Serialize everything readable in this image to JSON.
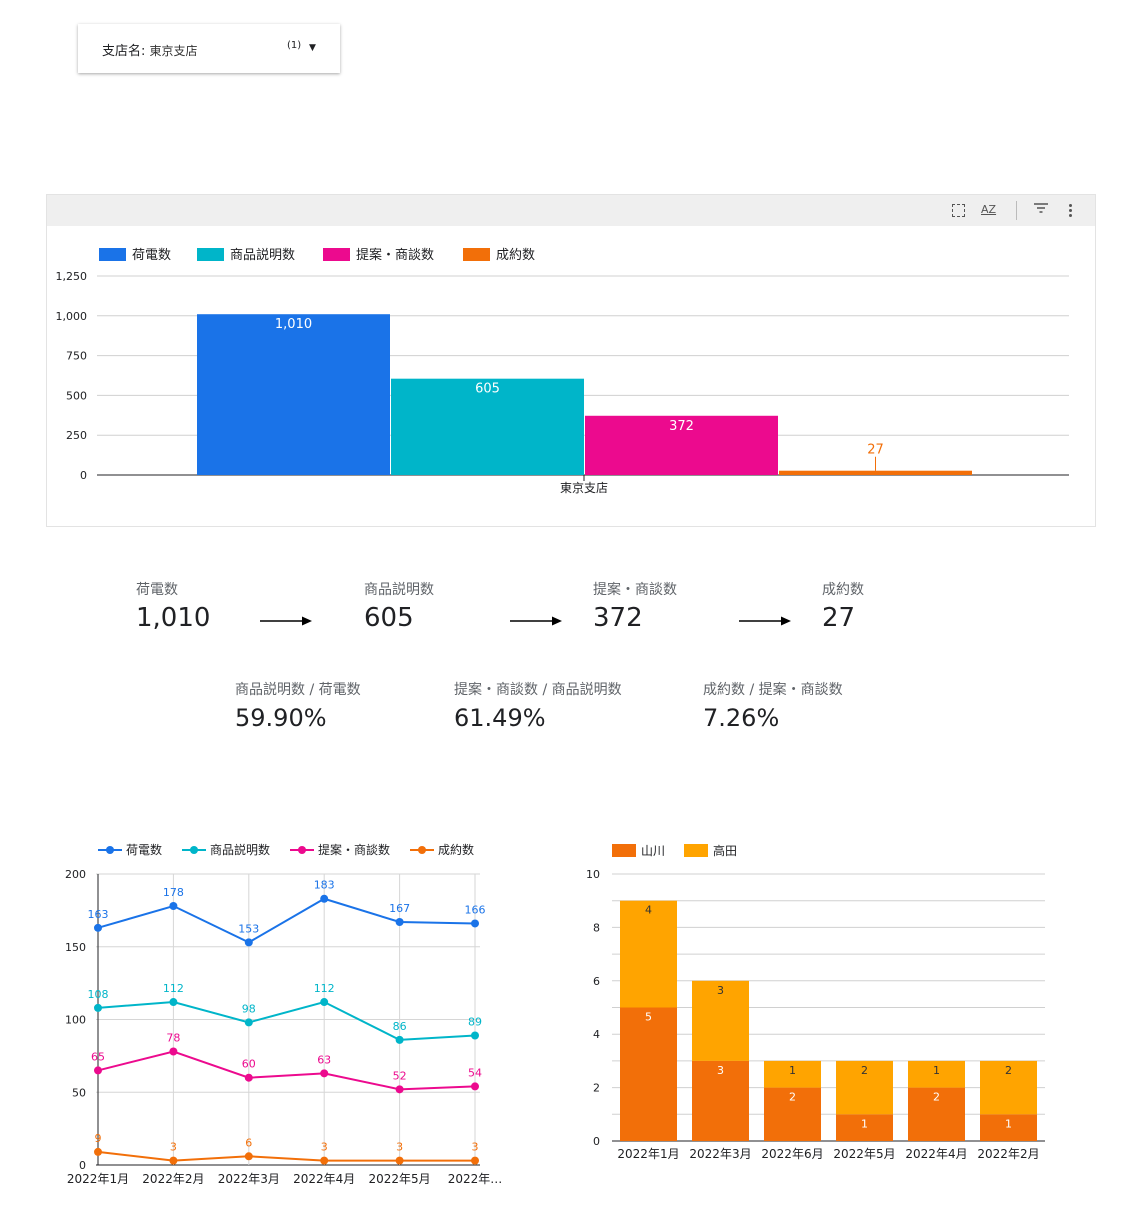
{
  "filter": {
    "label": "支店名:",
    "value": "東京支店",
    "count": "(1)"
  },
  "colors": {
    "calls": "#1a73e8",
    "explain": "#00b5c9",
    "proposal": "#ec0a8e",
    "contract": "#f26f09",
    "yamakawa": "#f26f09",
    "takada": "#ffa400"
  },
  "toolbar": {
    "sort_icon": "AZ"
  },
  "chart_data": [
    {
      "type": "bar",
      "categories": [
        "東京支店"
      ],
      "series": [
        {
          "name": "荷電数",
          "values": [
            1010
          ],
          "labels": [
            "1,010"
          ]
        },
        {
          "name": "商品説明数",
          "values": [
            605
          ],
          "labels": [
            "605"
          ]
        },
        {
          "name": "提案・商談数",
          "values": [
            372
          ],
          "labels": [
            "372"
          ]
        },
        {
          "name": "成約数",
          "values": [
            27
          ],
          "labels": [
            "27"
          ]
        }
      ],
      "yticks": [
        "0",
        "250",
        "500",
        "750",
        "1,000",
        "1,250"
      ],
      "ylim": [
        0,
        1250
      ],
      "legend": "top-left",
      "grid": true
    },
    {
      "type": "line",
      "x": [
        "2022年1月",
        "2022年2月",
        "2022年3月",
        "2022年4月",
        "2022年5月",
        "2022年…"
      ],
      "series": [
        {
          "name": "荷電数",
          "values": [
            163,
            178,
            153,
            183,
            167,
            166
          ]
        },
        {
          "name": "商品説明数",
          "values": [
            108,
            112,
            98,
            112,
            86,
            89
          ]
        },
        {
          "name": "提案・商談数",
          "values": [
            65,
            78,
            60,
            63,
            52,
            54
          ]
        },
        {
          "name": "成約数",
          "values": [
            9,
            3,
            6,
            3,
            3,
            3
          ]
        }
      ],
      "yticks": [
        "0",
        "50",
        "100",
        "150",
        "200"
      ],
      "ylim": [
        0,
        200
      ],
      "legend": "top-left",
      "grid": true
    },
    {
      "type": "bar",
      "stacked": true,
      "categories": [
        "2022年1月",
        "2022年3月",
        "2022年6月",
        "2022年5月",
        "2022年4月",
        "2022年2月"
      ],
      "series": [
        {
          "name": "山川",
          "values": [
            5,
            3,
            2,
            1,
            2,
            1
          ]
        },
        {
          "name": "高田",
          "values": [
            4,
            3,
            1,
            2,
            1,
            2
          ]
        }
      ],
      "yticks": [
        "0",
        "2",
        "4",
        "6",
        "8",
        "10"
      ],
      "ylim": [
        0,
        10
      ],
      "legend": "top-left",
      "grid": true
    }
  ],
  "kpis": [
    {
      "label": "荷電数",
      "value": "1,010"
    },
    {
      "label": "商品説明数",
      "value": "605"
    },
    {
      "label": "提案・商談数",
      "value": "372"
    },
    {
      "label": "成約数",
      "value": "27"
    }
  ],
  "ratios": [
    {
      "label": "商品説明数 / 荷電数",
      "value": "59.90%"
    },
    {
      "label": "提案・商談数 / 商品説明数",
      "value": "61.49%"
    },
    {
      "label": "成約数 / 提案・商談数",
      "value": "7.26%"
    }
  ]
}
